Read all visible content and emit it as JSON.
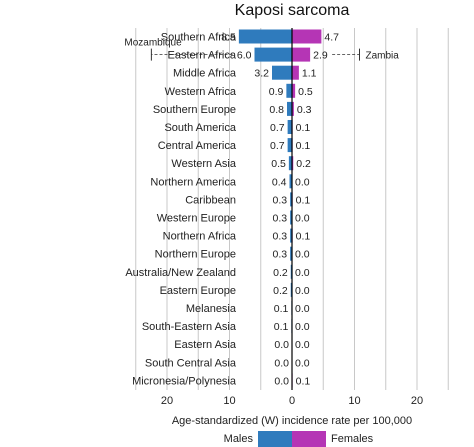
{
  "chart_data": {
    "type": "bar",
    "orientation": "horizontal-diverging",
    "title": "Kaposi sarcoma",
    "xlabel": "Age-standardized (W) incidence rate per 100,000",
    "xlim": [
      -25,
      25
    ],
    "xticks": [
      -20,
      -10,
      0,
      10,
      20
    ],
    "xtick_labels": [
      "20",
      "10",
      "0",
      "10",
      "20"
    ],
    "grid": true,
    "legend_position": "bottom",
    "categories": [
      "Southern Africa",
      "Eastern Africa",
      "Middle Africa",
      "Western Africa",
      "Southern Europe",
      "South America",
      "Central America",
      "Western Asia",
      "Northern America",
      "Caribbean",
      "Western Europe",
      "Northern Africa",
      "Northern Europe",
      "Australia/New Zealand",
      "Eastern Europe",
      "Melanesia",
      "South-Eastern Asia",
      "Eastern Asia",
      "South Central Asia",
      "Micronesia/Polynesia"
    ],
    "series": [
      {
        "name": "Males",
        "color": "#2f7bbd",
        "values": [
          8.5,
          6.0,
          3.2,
          0.9,
          0.8,
          0.7,
          0.7,
          0.5,
          0.4,
          0.3,
          0.3,
          0.3,
          0.3,
          0.2,
          0.2,
          0.1,
          0.1,
          0.0,
          0.0,
          0.0
        ],
        "labels": [
          "8.5",
          "6.0",
          "3.2",
          "0.9",
          "0.8",
          "0.7",
          "0.7",
          "0.5",
          "0.4",
          "0.3",
          "0.3",
          "0.3",
          "0.3",
          "0.2",
          "0.2",
          "0.1",
          "0.1",
          "0.0",
          "0.0",
          "0.0"
        ]
      },
      {
        "name": "Females",
        "color": "#b535b5",
        "values": [
          4.7,
          2.9,
          1.1,
          0.5,
          0.3,
          0.1,
          0.1,
          0.2,
          0.0,
          0.1,
          0.0,
          0.1,
          0.0,
          0.0,
          0.0,
          0.0,
          0.0,
          0.0,
          0.0,
          0.1
        ],
        "labels": [
          "4.7",
          "2.9",
          "1.1",
          "0.5",
          "0.3",
          "0.1",
          "0.1",
          "0.2",
          "0.0",
          "0.1",
          "0.0",
          "0.1",
          "0.0",
          "0.0",
          "0.0",
          "0.0",
          "0.0",
          "0.0",
          "0.0",
          "0.1"
        ]
      }
    ],
    "annotations": [
      {
        "text": "Mozambique",
        "category": "Eastern Africa",
        "side": "Males",
        "value": 22.5
      },
      {
        "text": "Zambia",
        "category": "Eastern Africa",
        "side": "Females",
        "value": 10.8
      }
    ]
  }
}
